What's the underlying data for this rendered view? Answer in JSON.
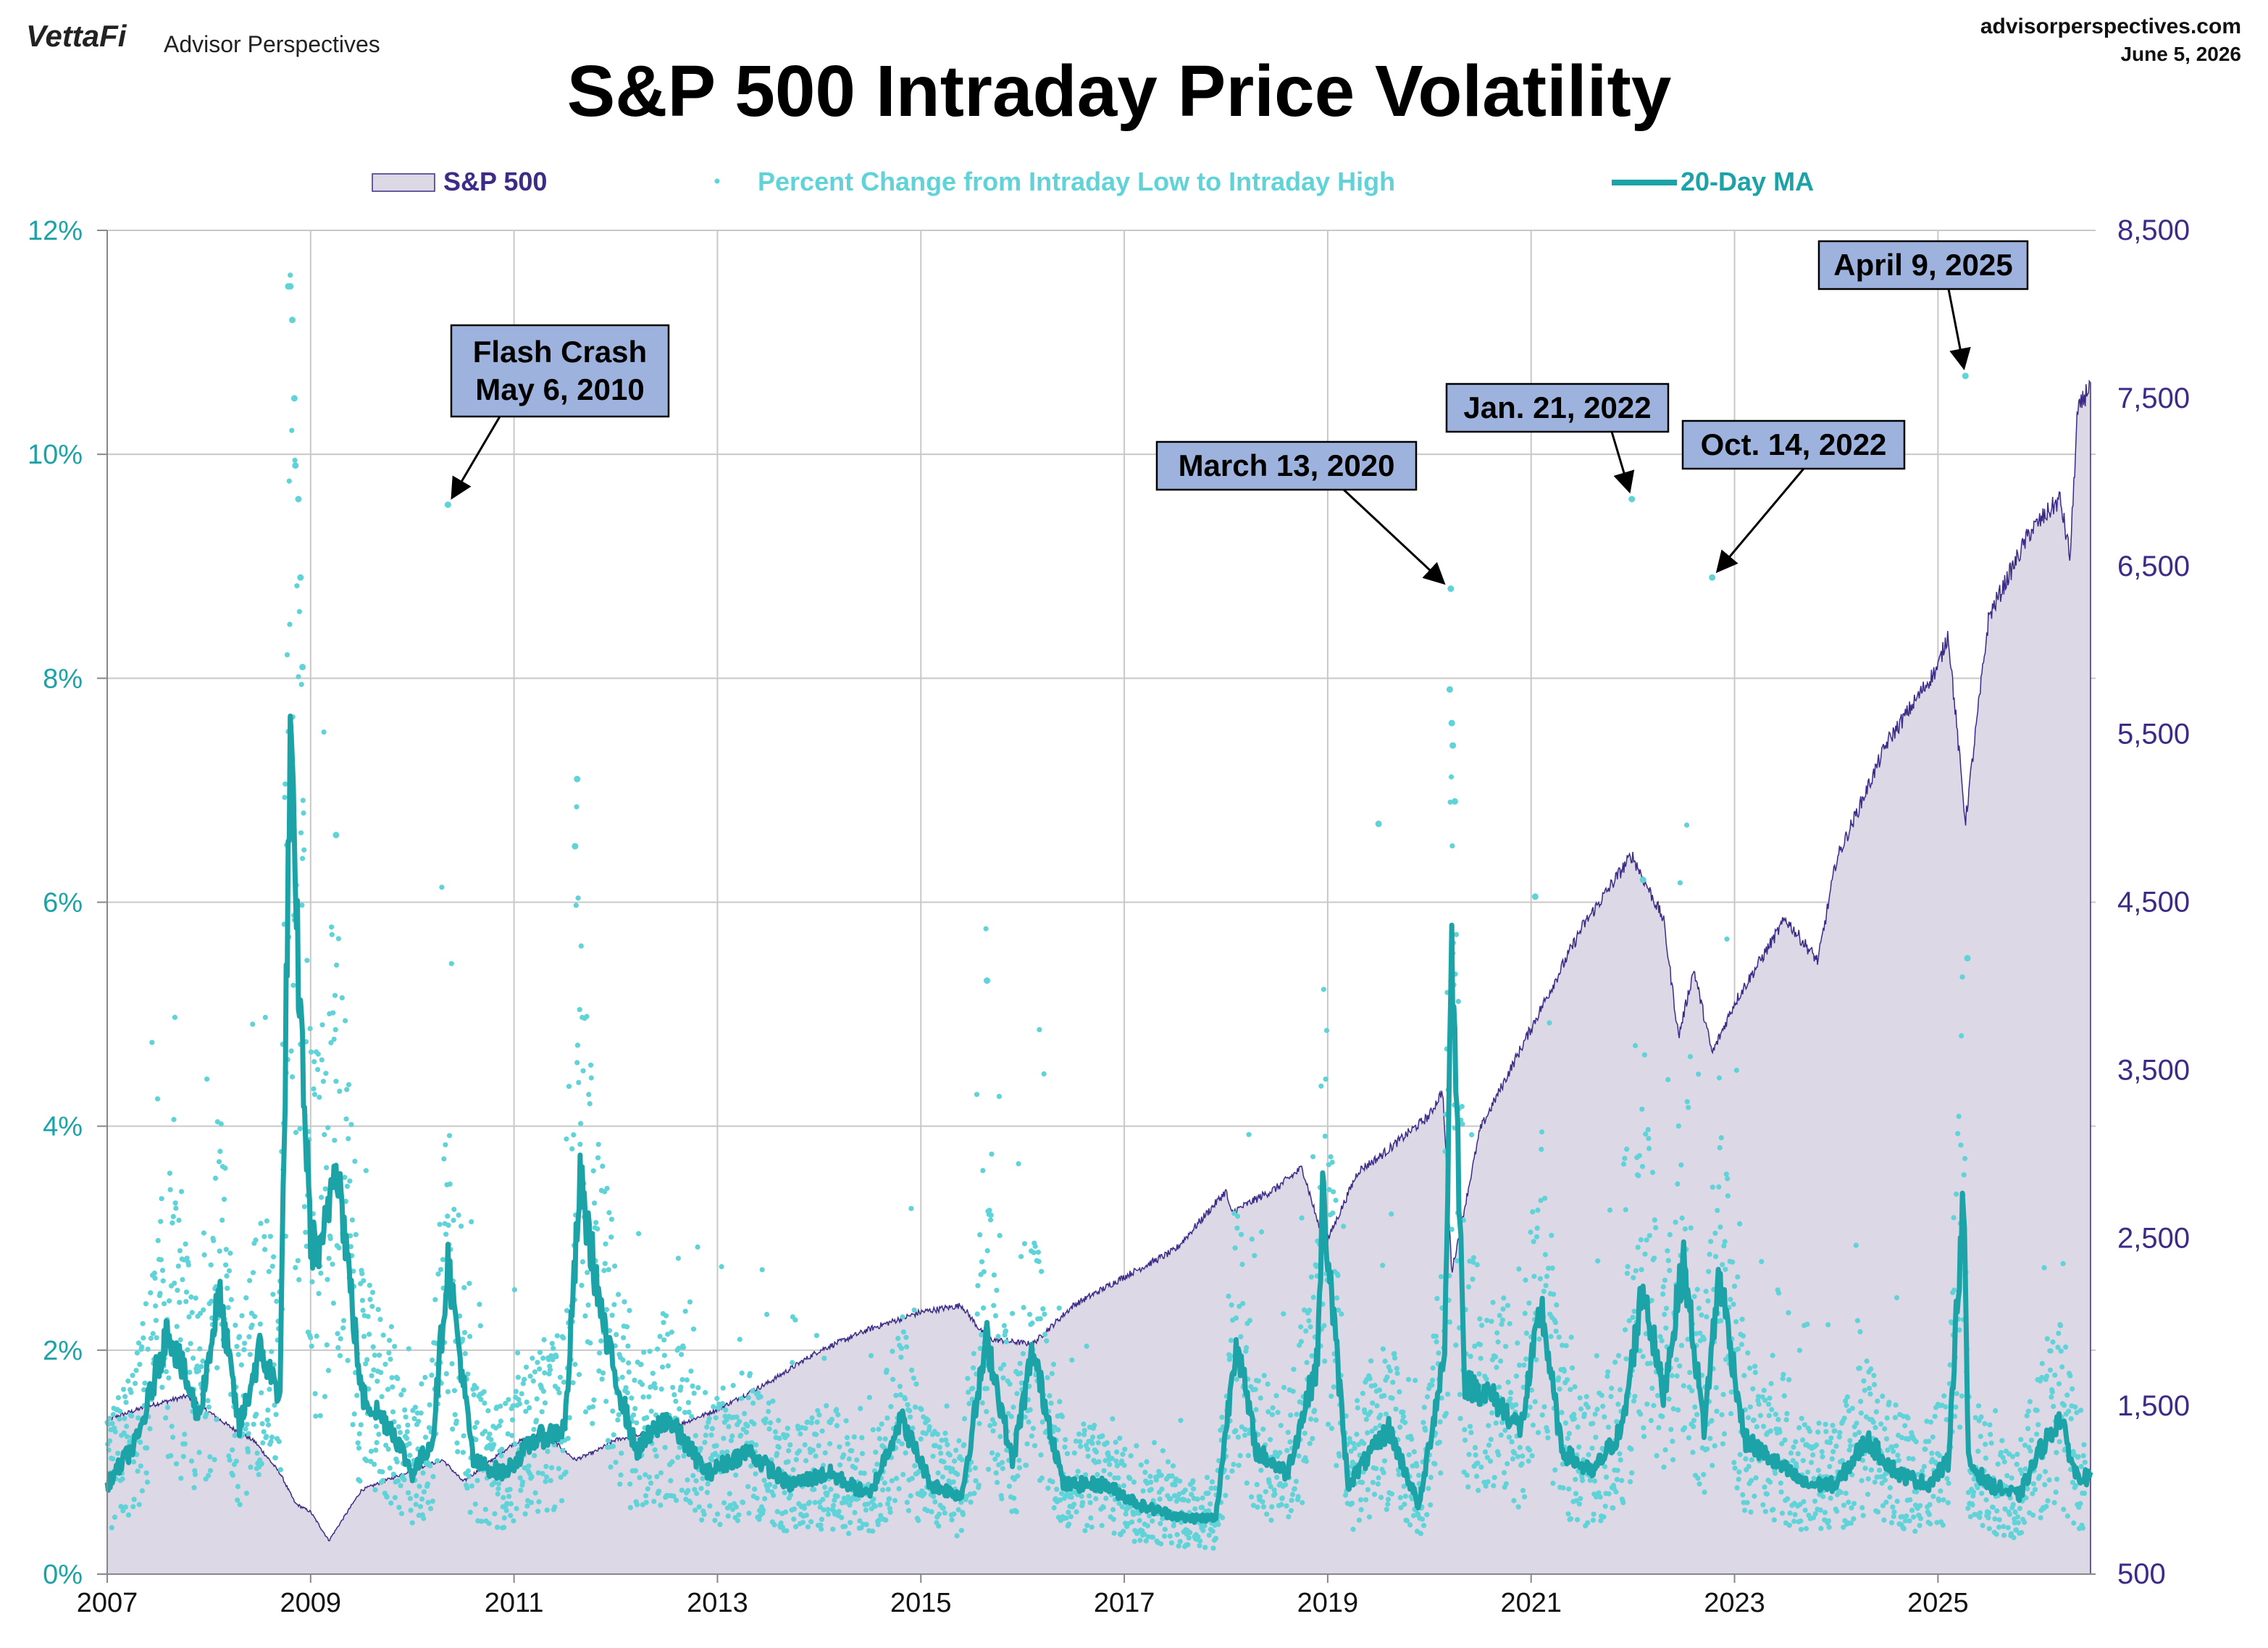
{
  "header": {
    "brand_logo": "VettaFi",
    "brand_name": "Advisor Perspectives",
    "site": "advisorperspectives.com",
    "date": "June 5, 2026"
  },
  "colors": {
    "area_fill": "#dcd8e6",
    "area_line": "#3d2b87",
    "dots": "#5fd3d8",
    "ma_line": "#1ba3a8",
    "left_axis_text": "#1ba3a8",
    "right_axis_text": "#3d2b87",
    "callout_fill": "#9db3dd",
    "grid": "#c8c8c8"
  },
  "chart_data": {
    "type": "line",
    "title": "S&P 500 Intraday Price Volatility",
    "legend": {
      "placement": "top",
      "items": [
        {
          "label": "S&P 500",
          "kind": "area"
        },
        {
          "label": "Percent Change from Intraday Low to Intraday High",
          "kind": "dots"
        },
        {
          "label": "20-Day MA",
          "kind": "line"
        }
      ]
    },
    "x_ticks": [
      "2007",
      "2009",
      "2011",
      "2013",
      "2015",
      "2017",
      "2019",
      "2021",
      "2023",
      "2025"
    ],
    "xlim": [
      2007.0,
      2026.55
    ],
    "left_axis": {
      "ticks": [
        "0%",
        "2%",
        "4%",
        "6%",
        "8%",
        "10%",
        "12%"
      ],
      "ylim": [
        0,
        12
      ],
      "unit": "%"
    },
    "right_axis": {
      "ticks": [
        "500",
        "1,500",
        "2,500",
        "3,500",
        "4,500",
        "5,500",
        "6,500",
        "7,500",
        "8,500"
      ],
      "ylim": [
        500,
        8500
      ]
    },
    "grid": true,
    "series": [
      {
        "name": "S&P 500",
        "axis": "right",
        "x": [
          2007.0,
          2007.4,
          2007.78,
          2008.2,
          2008.45,
          2008.7,
          2008.85,
          2009.0,
          2009.18,
          2009.5,
          2010.0,
          2010.3,
          2010.5,
          2011.0,
          2011.3,
          2011.6,
          2011.8,
          2012.0,
          2012.5,
          2013.0,
          2013.5,
          2014.0,
          2014.5,
          2015.0,
          2015.4,
          2015.65,
          2016.1,
          2016.5,
          2017.0,
          2017.5,
          2018.0,
          2018.05,
          2018.5,
          2018.75,
          2018.97,
          2019.3,
          2019.5,
          2020.0,
          2020.13,
          2020.22,
          2020.5,
          2021.0,
          2021.5,
          2021.99,
          2022.3,
          2022.45,
          2022.6,
          2022.78,
          2023.0,
          2023.5,
          2023.82,
          2024.0,
          2024.5,
          2025.0,
          2025.1,
          2025.27,
          2025.5,
          2025.9,
          2026.2,
          2026.3,
          2026.37,
          2026.5
        ],
        "values": [
          1420,
          1500,
          1560,
          1380,
          1290,
          1100,
          920,
          870,
          700,
          1000,
          1120,
          1180,
          1050,
          1280,
          1340,
          1180,
          1230,
          1300,
          1360,
          1480,
          1640,
          1830,
          1960,
          2060,
          2100,
          1900,
          1870,
          2100,
          2270,
          2430,
          2780,
          2650,
          2800,
          2920,
          2450,
          2900,
          2980,
          3230,
          3380,
          2300,
          3150,
          3750,
          4350,
          4780,
          4400,
          3700,
          4100,
          3600,
          3900,
          4400,
          4150,
          4750,
          5450,
          5900,
          6100,
          4980,
          6200,
          6700,
          6900,
          6550,
          7400,
          7600
        ]
      },
      {
        "name": "20-Day MA",
        "axis": "left",
        "x": [
          2007.0,
          2007.3,
          2007.6,
          2007.9,
          2008.1,
          2008.3,
          2008.5,
          2008.7,
          2008.8,
          2008.85,
          2009.0,
          2009.1,
          2009.25,
          2009.5,
          2009.8,
          2010.0,
          2010.2,
          2010.35,
          2010.6,
          2010.9,
          2011.2,
          2011.5,
          2011.65,
          2011.9,
          2012.2,
          2012.5,
          2012.9,
          2013.3,
          2013.7,
          2014.1,
          2014.5,
          2014.8,
          2015.1,
          2015.4,
          2015.65,
          2015.9,
          2016.1,
          2016.4,
          2016.8,
          2017.2,
          2017.6,
          2017.9,
          2018.1,
          2018.3,
          2018.6,
          2018.9,
          2018.95,
          2019.2,
          2019.6,
          2019.9,
          2020.15,
          2020.22,
          2020.35,
          2020.6,
          2020.9,
          2021.1,
          2021.3,
          2021.6,
          2021.9,
          2022.1,
          2022.3,
          2022.5,
          2022.7,
          2022.85,
          2023.1,
          2023.4,
          2023.7,
          2024.0,
          2024.3,
          2024.6,
          2024.9,
          2025.1,
          2025.25,
          2025.3,
          2025.5,
          2025.8,
          2026.0,
          2026.2,
          2026.35,
          2026.5
        ],
        "values": [
          0.8,
          1.2,
          2.2,
          1.4,
          2.5,
          1.3,
          2.0,
          1.6,
          7.4,
          6.0,
          3.0,
          2.8,
          3.8,
          1.6,
          1.3,
          0.9,
          1.2,
          2.8,
          1.0,
          0.9,
          1.2,
          1.3,
          3.5,
          2.1,
          1.1,
          1.4,
          0.9,
          1.1,
          0.8,
          0.9,
          0.7,
          1.4,
          0.8,
          0.7,
          2.1,
          1.0,
          2.0,
          0.8,
          0.8,
          0.6,
          0.5,
          0.5,
          2.1,
          1.1,
          0.9,
          1.9,
          3.4,
          0.8,
          1.3,
          0.6,
          2.0,
          5.6,
          1.7,
          1.6,
          1.3,
          2.4,
          1.1,
          0.9,
          1.3,
          2.6,
          1.6,
          2.8,
          1.3,
          2.7,
          1.2,
          1.0,
          0.8,
          0.8,
          1.2,
          0.9,
          0.8,
          1.0,
          3.4,
          1.0,
          0.8,
          0.7,
          1.1,
          1.4,
          0.9,
          0.85
        ]
      },
      {
        "name": "Percent Change from Intraday Low to Intraday High",
        "axis": "left",
        "kind": "scatter",
        "outliers": {
          "x": [
            2008.78,
            2008.8,
            2008.82,
            2008.84,
            2008.85,
            2008.88,
            2008.9,
            2008.92,
            2009.25,
            2010.35,
            2011.62,
            2011.6,
            2015.65,
            2019.5,
            2020.2,
            2020.21,
            2020.22,
            2020.23,
            2020.25,
            2021.04,
            2021.99,
            2022.1,
            2022.78,
            2025.27,
            2025.29
          ],
          "values": [
            11.5,
            11.5,
            11.2,
            10.5,
            9.9,
            9.6,
            8.9,
            8.1,
            6.6,
            9.55,
            7.1,
            6.5,
            5.3,
            6.7,
            7.9,
            8.8,
            7.6,
            7.4,
            6.9,
            6.05,
            9.6,
            6.2,
            8.9,
            10.7,
            5.5
          ]
        }
      }
    ],
    "annotations": [
      {
        "id": "flash",
        "text": [
          "Flash Crash",
          "May 6, 2010"
        ],
        "x": 2010.35,
        "y": 9.55
      },
      {
        "id": "mar2020",
        "text": [
          "March 13, 2020"
        ],
        "x": 2020.2,
        "y": 8.8
      },
      {
        "id": "jan2022",
        "text": [
          "Jan. 21, 2022"
        ],
        "x": 2021.99,
        "y": 9.6
      },
      {
        "id": "oct2022",
        "text": [
          "Oct. 14, 2022"
        ],
        "x": 2022.78,
        "y": 8.9
      },
      {
        "id": "apr2025",
        "text": [
          "April 9, 2025"
        ],
        "x": 2025.27,
        "y": 10.7
      }
    ]
  }
}
